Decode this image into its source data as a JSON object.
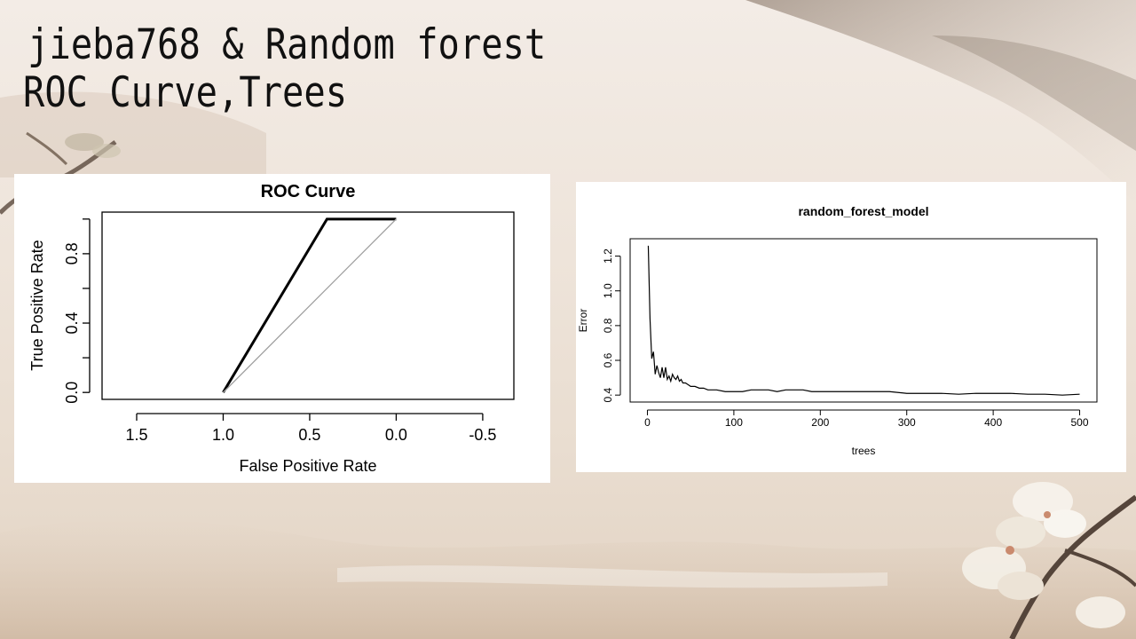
{
  "slide": {
    "title_line1": "jieba768 & Random forest",
    "title_line2": "ROC Curve,Trees"
  },
  "chart_data": [
    {
      "type": "line",
      "title": "ROC Curve",
      "xlabel": "False Positive Rate",
      "ylabel": "True Positive Rate",
      "xlim": [
        1.7,
        -0.68
      ],
      "ylim": [
        -0.04,
        1.04
      ],
      "x_reversed": true,
      "x_ticks": [
        1.5,
        1.0,
        0.5,
        0.0,
        -0.5
      ],
      "x_tick_labels": [
        "1.5",
        "1.0",
        "0.5",
        "0.0",
        "-0.5"
      ],
      "y_ticks": [
        0.0,
        0.2,
        0.4,
        0.6,
        0.8,
        1.0
      ],
      "y_tick_labels": [
        "0.0",
        "",
        "0.4",
        "",
        "0.8",
        ""
      ],
      "grid": false,
      "series": [
        {
          "x": [
            1.0,
            0.4,
            0.0
          ],
          "y": [
            0.0,
            1.0,
            1.0
          ],
          "color": "#000000",
          "width": "thick"
        },
        {
          "x": [
            1.0,
            0.0
          ],
          "y": [
            0.0,
            1.0
          ],
          "color": "#a0a0a0",
          "width": "thin"
        }
      ]
    },
    {
      "type": "line",
      "title": "random_forest_model",
      "xlabel": "trees",
      "ylabel": "Error",
      "xlim": [
        -20,
        520
      ],
      "ylim": [
        0.36,
        1.3
      ],
      "x_ticks": [
        0,
        100,
        200,
        300,
        400,
        500
      ],
      "y_ticks": [
        0.4,
        0.6,
        0.8,
        1.0,
        1.2
      ],
      "grid": false,
      "series": [
        {
          "color": "#000000",
          "x": [
            1,
            3,
            5,
            7,
            9,
            11,
            13,
            15,
            17,
            19,
            21,
            23,
            25,
            27,
            29,
            31,
            33,
            35,
            37,
            39,
            41,
            44,
            47,
            50,
            55,
            60,
            65,
            70,
            80,
            90,
            100,
            110,
            120,
            130,
            140,
            150,
            160,
            170,
            180,
            190,
            200,
            220,
            240,
            260,
            280,
            300,
            320,
            340,
            360,
            380,
            400,
            420,
            440,
            460,
            480,
            500
          ],
          "y": [
            1.26,
            0.84,
            0.61,
            0.65,
            0.52,
            0.57,
            0.53,
            0.5,
            0.56,
            0.5,
            0.56,
            0.49,
            0.51,
            0.48,
            0.52,
            0.5,
            0.49,
            0.51,
            0.48,
            0.49,
            0.47,
            0.47,
            0.46,
            0.45,
            0.45,
            0.44,
            0.44,
            0.43,
            0.43,
            0.42,
            0.42,
            0.42,
            0.43,
            0.43,
            0.43,
            0.42,
            0.43,
            0.43,
            0.43,
            0.42,
            0.42,
            0.42,
            0.42,
            0.42,
            0.42,
            0.41,
            0.41,
            0.41,
            0.405,
            0.41,
            0.41,
            0.41,
            0.405,
            0.405,
            0.4,
            0.405
          ]
        }
      ]
    }
  ]
}
